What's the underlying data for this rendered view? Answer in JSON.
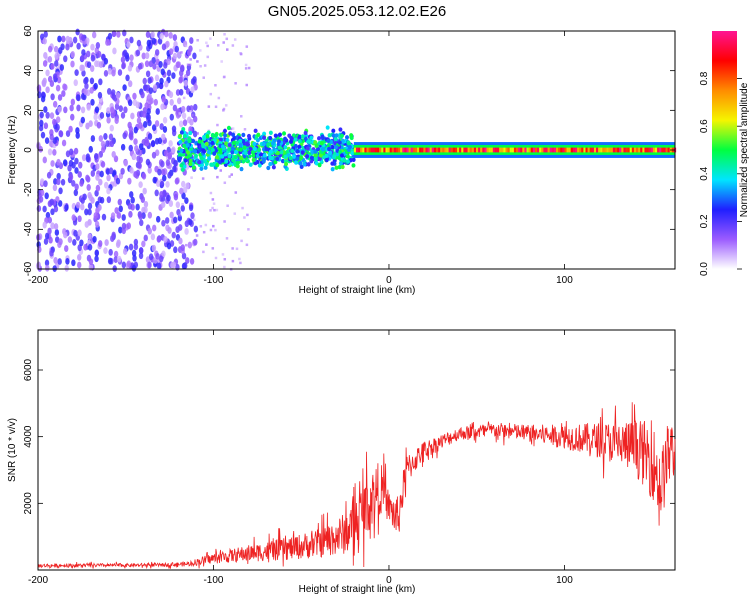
{
  "title": "GN05.2025.053.12.02.E26",
  "chart_data": [
    {
      "type": "heatmap",
      "xlabel": "Height of straight line (km)",
      "ylabel": "Frequency (Hz)",
      "xlim": [
        -200,
        163
      ],
      "ylim": [
        -60,
        60
      ],
      "x_ticks": [
        -200,
        -100,
        0,
        100
      ],
      "y_ticks": [
        -60,
        -40,
        -20,
        0,
        20,
        40,
        60
      ],
      "colorbar": {
        "label": "Normalized spectral amplitude",
        "range": [
          0,
          1
        ],
        "ticks": [
          0.0,
          0.2,
          0.4,
          0.6,
          0.8
        ],
        "colormap": [
          "#ffffff",
          "#9b5bff",
          "#1f1fff",
          "#00e5ff",
          "#00ff40",
          "#f5f500",
          "#ff8c00",
          "#ff0000",
          "#ff1493"
        ]
      },
      "regions": [
        {
          "x": [
            -200,
            -120
          ],
          "freq_spread": [
            -60,
            60
          ],
          "amplitude": [
            0.05,
            0.25
          ],
          "description": "noise"
        },
        {
          "x": [
            -120,
            -20
          ],
          "freq_center": 0,
          "freq_spread": [
            -12,
            12
          ],
          "amplitude": [
            0.2,
            0.55
          ]
        },
        {
          "x": [
            -20,
            163
          ],
          "freq_center": 0,
          "freq_spread": [
            -4,
            4
          ],
          "amplitude": [
            0.6,
            1.0
          ]
        }
      ]
    },
    {
      "type": "line",
      "xlabel": "Height of straight line (km)",
      "ylabel": "SNR (10 * v/v)",
      "xlim": [
        -200,
        163
      ],
      "ylim": [
        0,
        7200
      ],
      "x_ticks": [
        -200,
        -100,
        0,
        100
      ],
      "y_ticks": [
        2000,
        4000,
        6000
      ],
      "color": "#ee2222",
      "envelope": {
        "x": [
          -200,
          -130,
          -115,
          -100,
          -80,
          -60,
          -40,
          -25,
          -18,
          -12,
          -5,
          0,
          5,
          10,
          20,
          40,
          60,
          80,
          100,
          120,
          140,
          150,
          155,
          160,
          163
        ],
        "mean": [
          130,
          150,
          180,
          350,
          500,
          620,
          800,
          1100,
          1500,
          2000,
          2500,
          1900,
          1500,
          3000,
          3600,
          4100,
          4200,
          4100,
          4000,
          3900,
          3700,
          3300,
          2500,
          3600,
          3400
        ],
        "noise": [
          60,
          60,
          80,
          180,
          280,
          380,
          480,
          700,
          900,
          1000,
          900,
          500,
          800,
          500,
          300,
          220,
          250,
          300,
          400,
          600,
          900,
          1300,
          1200,
          1200,
          900
        ]
      }
    }
  ]
}
